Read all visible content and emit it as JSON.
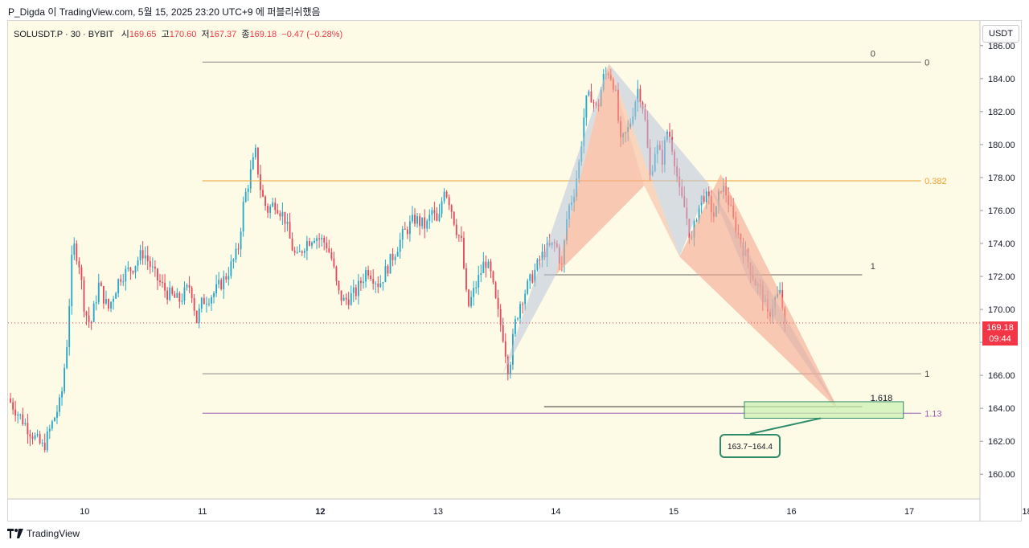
{
  "caption": "P_Digda 이 TradingView.com, 5월 15, 2025 23:20 UTC+9 에 퍼블리쉬했음",
  "symbol": {
    "name": "SOLUSDT.P · 30 · BYBIT",
    "open_label": "시",
    "open": "169.65",
    "high_label": "고",
    "high": "170.60",
    "low_label": "저",
    "low": "167.37",
    "close_label": "종",
    "close": "169.18",
    "change": "−0.47 (−0.28%)"
  },
  "currency": "USDT",
  "price_badge": {
    "price": "169.18",
    "countdown": "09:44"
  },
  "zone_label": "163.7~164.4",
  "logo_text": "TradingView",
  "colors": {
    "background": "#fdfbe6",
    "up": "#26a6c9",
    "down": "#e8455a",
    "fib_mid": "#f0a030",
    "fib_ext": "#9b59b6",
    "pattern_red": "#f5a78f",
    "pattern_blue": "#b8c4dc",
    "zone": "#2e8b6a"
  },
  "chart_data": {
    "type": "candlestick",
    "y_ticks": [
      160,
      162,
      164,
      166,
      168,
      170,
      172,
      174,
      176,
      178,
      180,
      182,
      184,
      186
    ],
    "ylim": [
      158.5,
      187.5
    ],
    "x_ticks": [
      {
        "day": 10,
        "label": "10",
        "bold": false
      },
      {
        "day": 11,
        "label": "11",
        "bold": false
      },
      {
        "day": 12,
        "label": "12",
        "bold": true
      },
      {
        "day": 13,
        "label": "13",
        "bold": false
      },
      {
        "day": 14,
        "label": "14",
        "bold": false
      },
      {
        "day": 15,
        "label": "15",
        "bold": false
      },
      {
        "day": 16,
        "label": "16",
        "bold": false
      },
      {
        "day": 17,
        "label": "17",
        "bold": false
      },
      {
        "day": 18,
        "label": "18",
        "bold": false
      }
    ],
    "xlim": [
      9.35,
      17.6
    ],
    "current_price": 169.18,
    "path": [
      [
        9.35,
        164.6
      ],
      [
        9.5,
        163.0
      ],
      [
        9.6,
        162.0
      ],
      [
        9.65,
        161.6
      ],
      [
        9.72,
        163.0
      ],
      [
        9.8,
        164.5
      ],
      [
        9.85,
        168.0
      ],
      [
        9.9,
        174.0
      ],
      [
        9.95,
        173.0
      ],
      [
        10.0,
        170.0
      ],
      [
        10.05,
        169.0
      ],
      [
        10.12,
        171.5
      ],
      [
        10.2,
        170.0
      ],
      [
        10.3,
        172.0
      ],
      [
        10.4,
        172.5
      ],
      [
        10.5,
        173.5
      ],
      [
        10.6,
        172.0
      ],
      [
        10.7,
        171.0
      ],
      [
        10.8,
        170.5
      ],
      [
        10.9,
        171.5
      ],
      [
        10.95,
        169.3
      ],
      [
        11.0,
        170.5
      ],
      [
        11.1,
        171.0
      ],
      [
        11.2,
        172.0
      ],
      [
        11.3,
        173.5
      ],
      [
        11.35,
        176.5
      ],
      [
        11.4,
        178.0
      ],
      [
        11.45,
        179.5
      ],
      [
        11.5,
        177.0
      ],
      [
        11.55,
        176.0
      ],
      [
        11.62,
        176.5
      ],
      [
        11.7,
        175.5
      ],
      [
        11.75,
        174.0
      ],
      [
        11.8,
        173.0
      ],
      [
        11.87,
        174.0
      ],
      [
        11.95,
        174.5
      ],
      [
        12.05,
        174.0
      ],
      [
        12.1,
        173.0
      ],
      [
        12.15,
        171.0
      ],
      [
        12.2,
        170.5
      ],
      [
        12.3,
        171.0
      ],
      [
        12.4,
        172.5
      ],
      [
        12.5,
        171.5
      ],
      [
        12.6,
        173.0
      ],
      [
        12.7,
        174.5
      ],
      [
        12.8,
        175.5
      ],
      [
        12.9,
        175.0
      ],
      [
        12.95,
        176.0
      ],
      [
        13.0,
        175.0
      ],
      [
        13.05,
        177.5
      ],
      [
        13.1,
        176.5
      ],
      [
        13.15,
        175.0
      ],
      [
        13.2,
        174.0
      ],
      [
        13.25,
        170.0
      ],
      [
        13.3,
        171.0
      ],
      [
        13.4,
        173.0
      ],
      [
        13.45,
        172.0
      ],
      [
        13.5,
        170.0
      ],
      [
        13.55,
        168.5
      ],
      [
        13.6,
        166.2
      ],
      [
        13.65,
        169.0
      ],
      [
        13.7,
        170.5
      ],
      [
        13.8,
        172.0
      ],
      [
        13.9,
        173.5
      ],
      [
        14.0,
        174.0
      ],
      [
        14.05,
        172.5
      ],
      [
        14.1,
        176.0
      ],
      [
        14.15,
        177.0
      ],
      [
        14.2,
        179.0
      ],
      [
        14.25,
        182.5
      ],
      [
        14.3,
        183.0
      ],
      [
        14.35,
        182.0
      ],
      [
        14.4,
        184.0
      ],
      [
        14.45,
        184.5
      ],
      [
        14.5,
        183.5
      ],
      [
        14.55,
        180.0
      ],
      [
        14.62,
        181.0
      ],
      [
        14.7,
        183.5
      ],
      [
        14.75,
        182.0
      ],
      [
        14.8,
        178.0
      ],
      [
        14.85,
        180.0
      ],
      [
        14.9,
        179.0
      ],
      [
        14.95,
        181.0
      ],
      [
        15.0,
        179.5
      ],
      [
        15.05,
        177.0
      ],
      [
        15.1,
        176.0
      ],
      [
        15.15,
        174.0
      ],
      [
        15.2,
        176.0
      ],
      [
        15.25,
        177.0
      ],
      [
        15.3,
        176.5
      ],
      [
        15.35,
        175.5
      ],
      [
        15.4,
        177.5
      ],
      [
        15.45,
        177.0
      ],
      [
        15.5,
        175.5
      ],
      [
        15.55,
        174.5
      ],
      [
        15.6,
        173.5
      ],
      [
        15.65,
        172.5
      ],
      [
        15.7,
        171.5
      ],
      [
        15.75,
        171.0
      ],
      [
        15.8,
        169.5
      ],
      [
        15.85,
        170.5
      ],
      [
        15.9,
        171.0
      ],
      [
        15.95,
        169.2
      ]
    ]
  }
}
